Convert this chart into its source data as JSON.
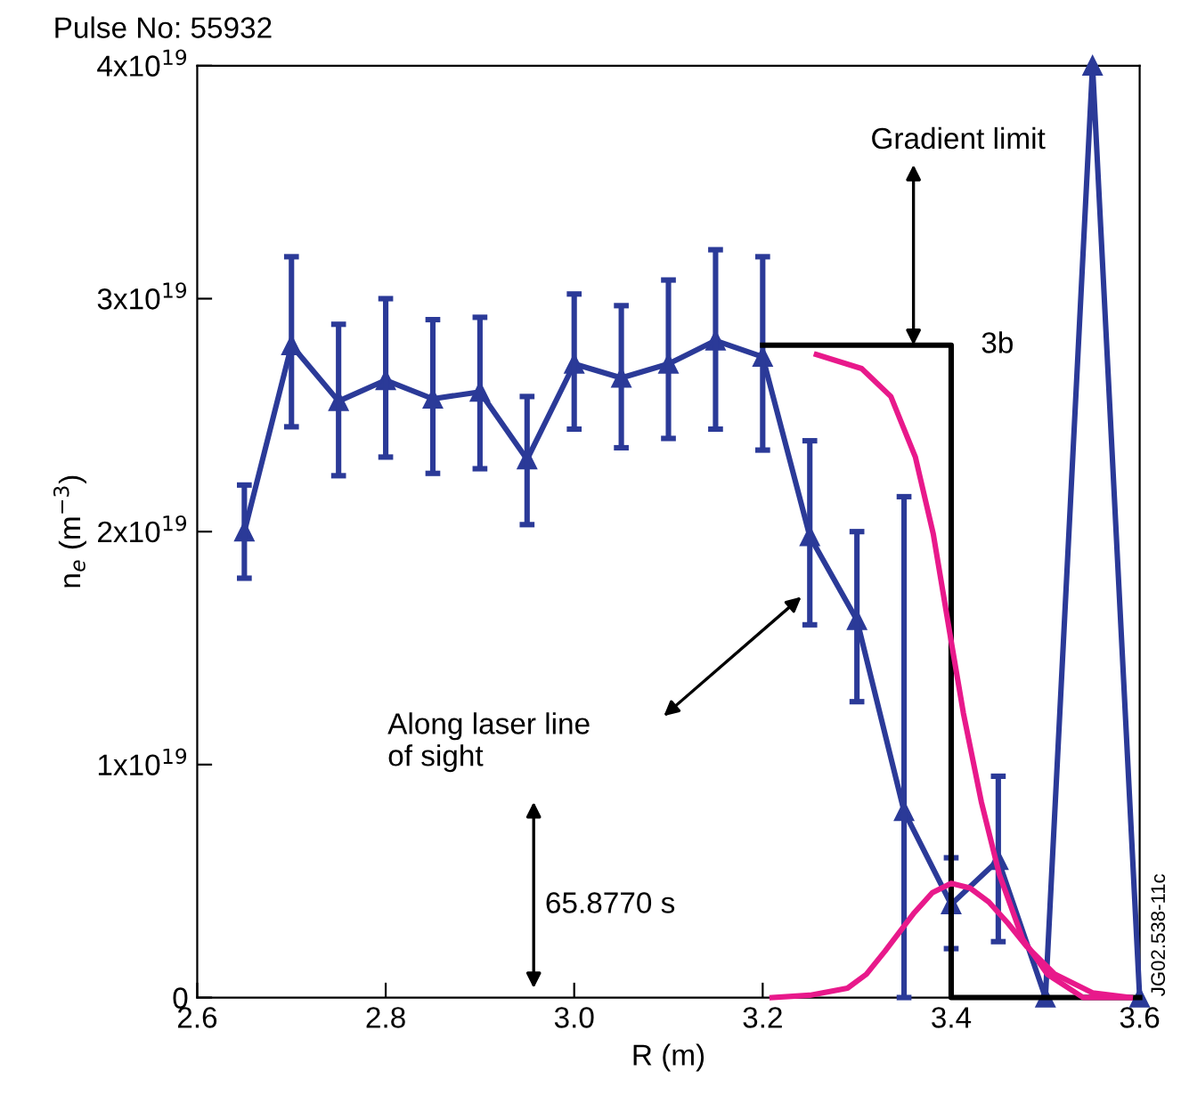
{
  "chart_data": {
    "type": "line",
    "xlabel": "R (m)",
    "ylabel": "n$_{e}$ (m$^{−3}$)",
    "xlim": [
      2.6,
      3.6
    ],
    "xticks": [
      2.6,
      2.8,
      {
        "value": 3.0,
        "label": "3.0"
      },
      3.2,
      3.4,
      3.6
    ],
    "ylim": [
      0,
      4e+19
    ],
    "yticks": [
      {
        "value": 0,
        "label": "0"
      },
      {
        "value": 1e+19,
        "label": "1x10$^{19}$"
      },
      {
        "value": 2e+19,
        "label": "2x10$^{19}$"
      },
      {
        "value": 3e+19,
        "label": "3x10$^{19}$"
      },
      {
        "value": 4e+19,
        "label": "4x10$^{19}$"
      }
    ],
    "grid": false,
    "legend": false,
    "series": [
      {
        "color": "#2b3a98",
        "marker": "triangle",
        "x": [
          2.65,
          2.7,
          2.75,
          2.8,
          2.85,
          2.9,
          2.95,
          3.0,
          3.05,
          3.1,
          3.15,
          3.2,
          3.25,
          3.3,
          3.35,
          3.4,
          3.45,
          3.5,
          3.55,
          3.6
        ],
        "values": [
          2e+19,
          2.8e+19,
          2.56e+19,
          2.65e+19,
          2.57e+19,
          2.6e+19,
          2.31e+19,
          2.72e+19,
          2.66e+19,
          2.72e+19,
          2.82e+19,
          2.75e+19,
          1.98e+19,
          1.62e+19,
          8e+18,
          4e+18,
          5.9e+18,
          0,
          4e+19,
          0
        ],
        "errors": [
          [
            1.8e+19,
            2.2e+19
          ],
          [
            2.45e+19,
            3.18e+19
          ],
          [
            2.24e+19,
            2.89e+19
          ],
          [
            2.32e+19,
            3e+19
          ],
          [
            2.25e+19,
            2.91e+19
          ],
          [
            2.27e+19,
            2.92e+19
          ],
          [
            2.03e+19,
            2.58e+19
          ],
          [
            2.44e+19,
            3.02e+19
          ],
          [
            2.36e+19,
            2.97e+19
          ],
          [
            2.4e+19,
            3.08e+19
          ],
          [
            2.44e+19,
            3.21e+19
          ],
          [
            2.35e+19,
            3.18e+19
          ],
          [
            1.6e+19,
            2.39e+19
          ],
          [
            1.27e+19,
            2e+19
          ],
          [
            0,
            2.15e+19
          ],
          [
            2.1e+18,
            6e+18
          ],
          [
            2.4e+18,
            9.5e+18
          ],
          null,
          null,
          null
        ]
      },
      {
        "color": "#000000",
        "marker": "none",
        "x": [
          3.2,
          3.4,
          3.4,
          3.6
        ],
        "values": [
          2.8e+19,
          2.8e+19,
          0,
          0
        ]
      },
      {
        "color": "#e8198b",
        "marker": "none",
        "x": [
          3.257,
          3.305,
          3.336,
          3.362,
          3.381,
          3.4,
          3.413,
          3.432,
          3.451,
          3.476,
          3.502,
          3.54,
          3.585
        ],
        "values": [
          2.76e+19,
          2.7e+19,
          2.58e+19,
          2.32e+19,
          1.99e+19,
          1.53e+19,
          1.22e+19,
          8.4e+18,
          5.3e+18,
          2.5e+18,
          1e+18,
          0,
          0
        ]
      },
      {
        "color": "#e8198b",
        "marker": "none",
        "x": [
          3.21,
          3.25,
          3.29,
          3.31,
          3.33,
          3.36,
          3.38,
          3.4,
          3.42,
          3.44,
          3.46,
          3.48,
          3.51,
          3.55,
          3.59
        ],
        "values": [
          0,
          1e+17,
          4e+17,
          1e+18,
          2e+18,
          3.6e+18,
          4.5e+18,
          4.9e+18,
          4.7e+18,
          4.1e+18,
          3.2e+18,
          2.2e+18,
          1e+18,
          2e+17,
          0
        ]
      }
    ],
    "annotations": [
      "Pulse No: 55932",
      {
        "text": "Gradient limit",
        "x": 3.36,
        "y": 2.8e+19
      },
      {
        "text": "3b",
        "x": 3.4,
        "y": 2.8e+19
      },
      "Along laser line\nof sight",
      "65.8770 s",
      "JG02.538-11c"
    ]
  }
}
